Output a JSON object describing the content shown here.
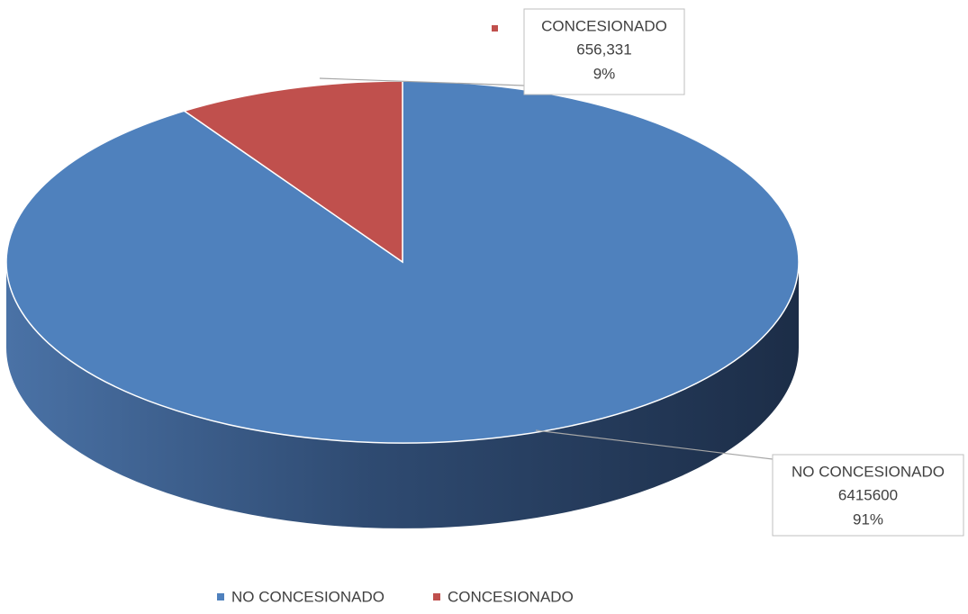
{
  "chart_data": {
    "type": "pie3d",
    "categories": [
      "NO CONCESIONADO",
      "CONCESIONADO"
    ],
    "values": [
      6415600,
      656331
    ],
    "value_labels": [
      "6415600",
      "656,331"
    ],
    "percent_labels": [
      "91%",
      "9%"
    ],
    "colors": [
      "#4f81bd",
      "#c0504d"
    ],
    "legend": "bottom"
  }
}
